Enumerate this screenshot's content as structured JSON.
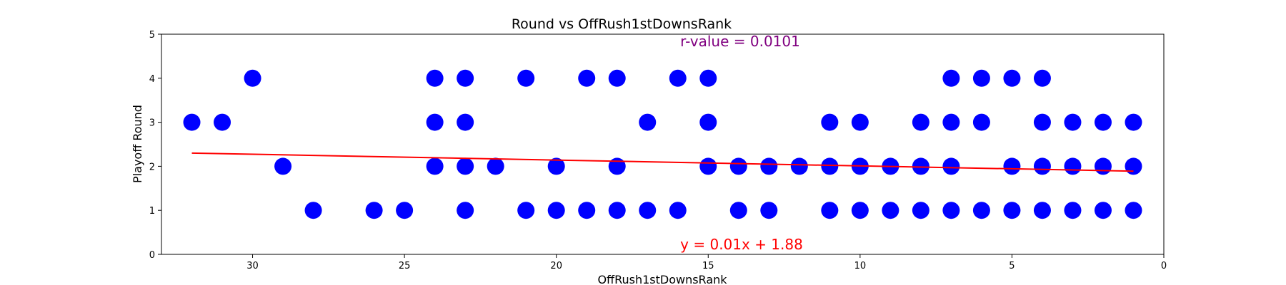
{
  "chart_data": {
    "type": "scatter",
    "title": "Round vs OffRush1stDownsRank",
    "xlabel": "OffRush1stDownsRank",
    "ylabel": "Playoff Round",
    "xlim": [
      33,
      0
    ],
    "ylim": [
      0,
      5
    ],
    "x_ticks": [
      "30",
      "25",
      "20",
      "15",
      "10",
      "5",
      "0"
    ],
    "y_ticks": [
      "0",
      "1",
      "2",
      "3",
      "4",
      "5"
    ],
    "x_tick_values": [
      30,
      25,
      20,
      15,
      10,
      5,
      0
    ],
    "y_tick_values": [
      0,
      1,
      2,
      3,
      4,
      5
    ],
    "x_axis_inverted": true,
    "grid": false,
    "marker_color": "#0000ff",
    "points": [
      {
        "x": 32,
        "y": 3
      },
      {
        "x": 31,
        "y": 3
      },
      {
        "x": 30,
        "y": 4
      },
      {
        "x": 29,
        "y": 2
      },
      {
        "x": 28,
        "y": 1
      },
      {
        "x": 26,
        "y": 1
      },
      {
        "x": 25,
        "y": 1
      },
      {
        "x": 24,
        "y": 4
      },
      {
        "x": 24,
        "y": 3
      },
      {
        "x": 24,
        "y": 2
      },
      {
        "x": 23,
        "y": 4
      },
      {
        "x": 23,
        "y": 3
      },
      {
        "x": 23,
        "y": 2
      },
      {
        "x": 23,
        "y": 1
      },
      {
        "x": 22,
        "y": 2
      },
      {
        "x": 21,
        "y": 4
      },
      {
        "x": 21,
        "y": 1
      },
      {
        "x": 20,
        "y": 2
      },
      {
        "x": 20,
        "y": 1
      },
      {
        "x": 19,
        "y": 4
      },
      {
        "x": 19,
        "y": 1
      },
      {
        "x": 18,
        "y": 4
      },
      {
        "x": 18,
        "y": 2
      },
      {
        "x": 18,
        "y": 1
      },
      {
        "x": 17,
        "y": 3
      },
      {
        "x": 17,
        "y": 1
      },
      {
        "x": 16,
        "y": 4
      },
      {
        "x": 16,
        "y": 1
      },
      {
        "x": 15,
        "y": 4
      },
      {
        "x": 15,
        "y": 3
      },
      {
        "x": 15,
        "y": 2
      },
      {
        "x": 14,
        "y": 2
      },
      {
        "x": 14,
        "y": 1
      },
      {
        "x": 13,
        "y": 2
      },
      {
        "x": 13,
        "y": 1
      },
      {
        "x": 12,
        "y": 2
      },
      {
        "x": 11,
        "y": 3
      },
      {
        "x": 11,
        "y": 2
      },
      {
        "x": 11,
        "y": 1
      },
      {
        "x": 10,
        "y": 3
      },
      {
        "x": 10,
        "y": 2
      },
      {
        "x": 10,
        "y": 1
      },
      {
        "x": 9,
        "y": 2
      },
      {
        "x": 9,
        "y": 1
      },
      {
        "x": 8,
        "y": 3
      },
      {
        "x": 8,
        "y": 2
      },
      {
        "x": 8,
        "y": 1
      },
      {
        "x": 7,
        "y": 4
      },
      {
        "x": 7,
        "y": 3
      },
      {
        "x": 7,
        "y": 2
      },
      {
        "x": 7,
        "y": 1
      },
      {
        "x": 6,
        "y": 4
      },
      {
        "x": 6,
        "y": 3
      },
      {
        "x": 6,
        "y": 1
      },
      {
        "x": 5,
        "y": 4
      },
      {
        "x": 5,
        "y": 2
      },
      {
        "x": 5,
        "y": 1
      },
      {
        "x": 4,
        "y": 4
      },
      {
        "x": 4,
        "y": 3
      },
      {
        "x": 4,
        "y": 2
      },
      {
        "x": 4,
        "y": 1
      },
      {
        "x": 3,
        "y": 3
      },
      {
        "x": 3,
        "y": 2
      },
      {
        "x": 3,
        "y": 1
      },
      {
        "x": 2,
        "y": 3
      },
      {
        "x": 2,
        "y": 2
      },
      {
        "x": 2,
        "y": 1
      },
      {
        "x": 1,
        "y": 3
      },
      {
        "x": 1,
        "y": 2
      },
      {
        "x": 1,
        "y": 1
      }
    ],
    "regression": {
      "color": "#ff0000",
      "points": [
        {
          "x": 32,
          "y": 2.3
        },
        {
          "x": 1,
          "y": 1.89
        }
      ],
      "equation_label": "y = 0.01x + 1.88"
    },
    "r_value_label": "r-value = 0.0101",
    "r_value_color": "#800080"
  }
}
